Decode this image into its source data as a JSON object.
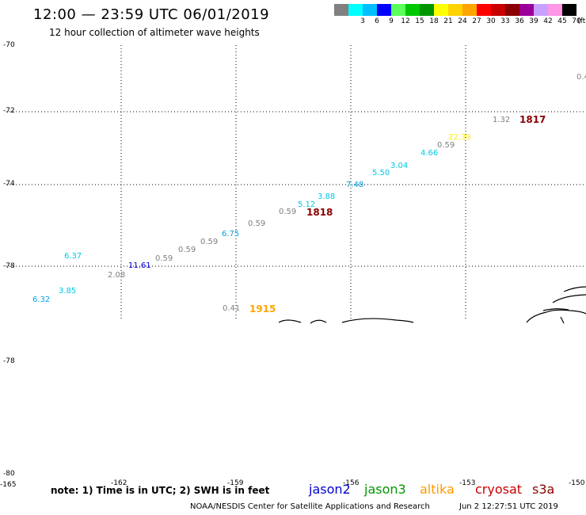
{
  "header": {
    "title": "12:00 — 23:59 UTC 06/01/2019",
    "subtitle": "12 hour collection of altimeter wave heights"
  },
  "color_scale": {
    "unit": "(ft)",
    "steps": [
      {
        "label": "",
        "color": "#808080"
      },
      {
        "label": "3",
        "color": "#00ffff"
      },
      {
        "label": "6",
        "color": "#00bfff"
      },
      {
        "label": "9",
        "color": "#0000ff"
      },
      {
        "label": "12",
        "color": "#5aff5a"
      },
      {
        "label": "15",
        "color": "#00c800"
      },
      {
        "label": "18",
        "color": "#009600"
      },
      {
        "label": "21",
        "color": "#ffff00"
      },
      {
        "label": "24",
        "color": "#ffd200"
      },
      {
        "label": "27",
        "color": "#ffa500"
      },
      {
        "label": "30",
        "color": "#ff0000"
      },
      {
        "label": "33",
        "color": "#c80000"
      },
      {
        "label": "36",
        "color": "#8b0000"
      },
      {
        "label": "39",
        "color": "#9b009b"
      },
      {
        "label": "42",
        "color": "#c8a0ff"
      },
      {
        "label": "45",
        "color": "#ff96e6"
      },
      {
        "label": "70",
        "color": "#000000"
      }
    ]
  },
  "map": {
    "lat_labels": [
      "-70",
      "-72",
      "-74",
      "-78",
      "-78",
      "-80"
    ],
    "lon_labels": [
      "-165",
      "-162",
      "-159",
      "-156",
      "-153",
      "-150"
    ],
    "wave_heights": [
      {
        "value": "0.4",
        "color": "#808080"
      },
      {
        "value": "1.32",
        "color": "#808080"
      },
      {
        "value": "22.39",
        "color": "#ffee00"
      },
      {
        "value": "0.59",
        "color": "#808080"
      },
      {
        "value": "4.66",
        "color": "#00c8e6"
      },
      {
        "value": "3.04",
        "color": "#00c8e6"
      },
      {
        "value": "5.50",
        "color": "#00c8e6"
      },
      {
        "value": "7.48",
        "color": "#00a0e6"
      },
      {
        "value": "3.88",
        "color": "#00c8e6"
      },
      {
        "value": "5.12",
        "color": "#00c8e6"
      },
      {
        "value": "0.59",
        "color": "#808080"
      },
      {
        "value": "0.59",
        "color": "#808080"
      },
      {
        "value": "6.75",
        "color": "#00a0e6"
      },
      {
        "value": "0.59",
        "color": "#808080"
      },
      {
        "value": "0.59",
        "color": "#808080"
      },
      {
        "value": "0.59",
        "color": "#808080"
      },
      {
        "value": "11.61",
        "color": "#0000dc"
      },
      {
        "value": "2.08",
        "color": "#808080"
      },
      {
        "value": "6.37",
        "color": "#00c8e6"
      },
      {
        "value": "3.85",
        "color": "#00c8e6"
      },
      {
        "value": "6.32",
        "color": "#00a0e6"
      },
      {
        "value": "0.41",
        "color": "#808080"
      }
    ],
    "pass_times": [
      {
        "value": "1817",
        "color": "#8b0000"
      },
      {
        "value": "1818",
        "color": "#8b0000"
      },
      {
        "value": "1915",
        "color": "#ffa500"
      }
    ]
  },
  "footer": {
    "note": "note: 1) Time is in UTC; 2) SWH is in feet",
    "satellites": [
      {
        "name": "jason2",
        "color": "#0000cc"
      },
      {
        "name": "jason3",
        "color": "#009600"
      },
      {
        "name": "altika",
        "color": "#ff9900"
      },
      {
        "name": "cryosat",
        "color": "#cc0000"
      },
      {
        "name": "s3a",
        "color": "#8b0000"
      }
    ],
    "credit": "NOAA/NESDIS Center for Satellite Applications and Research",
    "timestamp": "Jun  2 12:27:51 UTC 2019"
  }
}
